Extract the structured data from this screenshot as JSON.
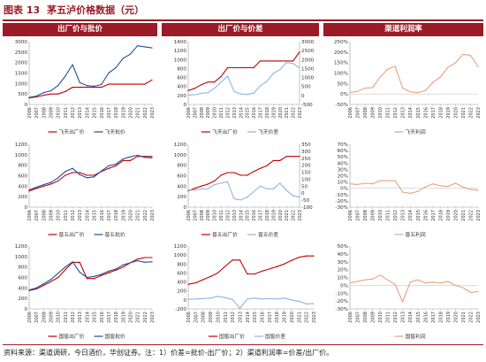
{
  "figure": {
    "label": "图表 13",
    "title": "茅五泸价格数据（元）"
  },
  "columns": [
    "出厂价与批价",
    "出厂价与价差",
    "渠道利润率"
  ],
  "source_note": "资料来源：渠道调研，今日酒价，华创证券。注：1）价差=批价-出厂价；2）渠道利润率=价差/出厂价。",
  "colors": {
    "red": "#c00000",
    "blue": "#1f4e9a",
    "lightblue": "#8fb4e3",
    "orange": "#e8a27c",
    "brand": "#9b1b26"
  },
  "chart_data": [
    {
      "id": "mt-price",
      "type": "line",
      "x": [
        "2006",
        "2007",
        "2008",
        "2009",
        "2010",
        "2011",
        "2012",
        "2013",
        "2014",
        "2015",
        "2016",
        "2017",
        "2018",
        "2019",
        "2020",
        "2021",
        "2022",
        "2023"
      ],
      "ylim": [
        0,
        3000
      ],
      "yticks": [
        0,
        500,
        1000,
        1500,
        2000,
        2500,
        3000
      ],
      "series": [
        {
          "name": "飞天出厂价",
          "color": "red",
          "dash": false,
          "values": [
            308,
            358,
            439,
            499,
            499,
            619,
            819,
            819,
            819,
            819,
            819,
            969,
            969,
            969,
            969,
            969,
            969,
            1169
          ]
        },
        {
          "name": "飞天批价",
          "color": "blue",
          "dash": false,
          "values": [
            330,
            400,
            560,
            650,
            900,
            1350,
            1900,
            1050,
            900,
            870,
            950,
            1500,
            1750,
            2200,
            2400,
            2800,
            2750,
            2700
          ]
        }
      ]
    },
    {
      "id": "mt-spread",
      "type": "line",
      "x": [
        "2006",
        "2007",
        "2008",
        "2009",
        "2010",
        "2011",
        "2012",
        "2013",
        "2014",
        "2015",
        "2016",
        "2017",
        "2018",
        "2019",
        "2020",
        "2021",
        "2022",
        "2023"
      ],
      "ylim": [
        0,
        1400
      ],
      "yticks": [
        0,
        200,
        400,
        600,
        800,
        1000,
        1200,
        1400
      ],
      "ylim2": [
        -500,
        3000
      ],
      "yticks2": [
        -500,
        0,
        500,
        1000,
        1500,
        2000,
        2500,
        3000
      ],
      "series": [
        {
          "name": "飞天出厂价",
          "color": "red",
          "dash": false,
          "axis": "left",
          "values": [
            308,
            358,
            439,
            499,
            499,
            619,
            819,
            819,
            819,
            819,
            819,
            969,
            969,
            969,
            969,
            969,
            969,
            1169
          ]
        },
        {
          "name": "飞天价差",
          "color": "lightblue",
          "dash": false,
          "axis": "right",
          "values": [
            22,
            42,
            121,
            151,
            401,
            731,
            1081,
            231,
            81,
            51,
            131,
            531,
            781,
            1231,
            1431,
            1831,
            1781,
            1531
          ]
        }
      ]
    },
    {
      "id": "mt-margin",
      "type": "line",
      "x": [
        "2006",
        "2007",
        "2008",
        "2009",
        "2010",
        "2011",
        "2012",
        "2013",
        "2014",
        "2015",
        "2016",
        "2017",
        "2018",
        "2019",
        "2020",
        "2021",
        "2022",
        "2023"
      ],
      "ylim": [
        -50,
        250
      ],
      "yticks": [
        -50,
        0,
        50,
        100,
        150,
        200,
        250
      ],
      "yformat": "%",
      "series": [
        {
          "name": "飞天利润",
          "color": "orange",
          "dash": false,
          "values": [
            7,
            12,
            28,
            30,
            80,
            118,
            132,
            28,
            10,
            6,
            16,
            55,
            81,
            127,
            148,
            189,
            184,
            131
          ]
        }
      ]
    },
    {
      "id": "wly-price",
      "type": "line",
      "x": [
        "2006",
        "2007",
        "2008",
        "2009",
        "2010",
        "2011",
        "2012",
        "2013",
        "2014",
        "2015",
        "2016",
        "2017",
        "2018",
        "2019",
        "2020",
        "2021",
        "2022",
        "2023"
      ],
      "ylim": [
        0,
        1200
      ],
      "yticks": [
        0,
        200,
        400,
        600,
        800,
        1000,
        1200
      ],
      "series": [
        {
          "name": "普五出厂价",
          "color": "red",
          "dash": false,
          "values": [
            308,
            358,
            400,
            439,
            499,
            609,
            659,
            659,
            609,
            609,
            679,
            739,
            789,
            889,
            889,
            969,
            969,
            969
          ]
        },
        {
          "name": "普五批价",
          "color": "blue",
          "dash": false,
          "values": [
            330,
            380,
            430,
            470,
            560,
            680,
            740,
            620,
            560,
            580,
            690,
            790,
            820,
            920,
            960,
            990,
            950,
            940
          ]
        }
      ]
    },
    {
      "id": "wly-spread",
      "type": "line",
      "x": [
        "2006",
        "2007",
        "2008",
        "2009",
        "2010",
        "2011",
        "2012",
        "2013",
        "2014",
        "2015",
        "2016",
        "2017",
        "2018",
        "2019",
        "2020",
        "2021",
        "2022",
        "2023"
      ],
      "ylim": [
        0,
        1200
      ],
      "yticks": [
        0,
        200,
        400,
        600,
        800,
        1000,
        1200
      ],
      "ylim2": [
        -100,
        350
      ],
      "yticks2": [
        -100,
        -50,
        0,
        50,
        100,
        150,
        200,
        250,
        300,
        350
      ],
      "series": [
        {
          "name": "普五出厂价",
          "color": "red",
          "dash": false,
          "axis": "left",
          "values": [
            308,
            358,
            400,
            439,
            499,
            609,
            659,
            659,
            609,
            609,
            679,
            739,
            789,
            889,
            889,
            969,
            969,
            969
          ]
        },
        {
          "name": "普五价差",
          "color": "lightblue",
          "dash": false,
          "axis": "right",
          "values": [
            22,
            22,
            30,
            31,
            61,
            71,
            81,
            -39,
            -49,
            -29,
            11,
            51,
            31,
            31,
            71,
            21,
            -19,
            -29
          ]
        }
      ]
    },
    {
      "id": "wly-margin",
      "type": "line",
      "x": [
        "2006",
        "2007",
        "2008",
        "2009",
        "2010",
        "2011",
        "2012",
        "2013",
        "2014",
        "2015",
        "2016",
        "2017",
        "2018",
        "2019",
        "2020",
        "2021",
        "2022",
        "2023"
      ],
      "ylim": [
        -30,
        70
      ],
      "yticks": [
        -30,
        -20,
        -10,
        0,
        10,
        20,
        30,
        40,
        50,
        60,
        70
      ],
      "yformat": "%",
      "series": [
        {
          "name": "普五利润",
          "color": "orange",
          "dash": false,
          "values": [
            7,
            6,
            8,
            7,
            12,
            12,
            12,
            -6,
            -8,
            -5,
            2,
            7,
            4,
            3,
            8,
            2,
            -2,
            -3
          ]
        }
      ]
    },
    {
      "id": "lz-price",
      "type": "line",
      "x": [
        "2006",
        "2007",
        "2008",
        "2009",
        "2010",
        "2011",
        "2012",
        "2013",
        "2014",
        "2015",
        "2016",
        "2017",
        "2018",
        "2019",
        "2020",
        "2021",
        "2022",
        "2023"
      ],
      "ylim": [
        0,
        1200
      ],
      "yticks": [
        0,
        200,
        400,
        600,
        800,
        1000,
        1200
      ],
      "series": [
        {
          "name": "国窖出厂价",
          "color": "red",
          "dash": false,
          "values": [
            348,
            380,
            450,
            520,
            600,
            749,
            889,
            889,
            579,
            579,
            640,
            690,
            740,
            800,
            880,
            950,
            980,
            980
          ]
        },
        {
          "name": "国窖批价",
          "color": "blue",
          "dash": false,
          "values": [
            360,
            400,
            480,
            560,
            680,
            800,
            900,
            700,
            600,
            620,
            660,
            720,
            760,
            840,
            880,
            920,
            890,
            900
          ]
        }
      ]
    },
    {
      "id": "lz-spread",
      "type": "line",
      "x": [
        "2006",
        "2007",
        "2008",
        "2009",
        "2010",
        "2011",
        "2012",
        "2013",
        "2014",
        "2015",
        "2016",
        "2017",
        "2018",
        "2019",
        "2020",
        "2021",
        "2022",
        "2023"
      ],
      "ylim": [
        -200,
        1200
      ],
      "yticks": [
        -200,
        0,
        200,
        400,
        600,
        800,
        1000,
        1200
      ],
      "series": [
        {
          "name": "国窖出厂价",
          "color": "red",
          "dash": false,
          "values": [
            348,
            380,
            450,
            520,
            600,
            749,
            889,
            889,
            579,
            579,
            640,
            690,
            740,
            800,
            880,
            950,
            980,
            980
          ]
        },
        {
          "name": "国窖价差",
          "color": "lightblue",
          "dash": false,
          "values": [
            12,
            20,
            30,
            40,
            80,
            51,
            11,
            -189,
            21,
            41,
            20,
            30,
            20,
            40,
            0,
            -30,
            -90,
            -80
          ]
        }
      ]
    },
    {
      "id": "lz-margin",
      "type": "line",
      "x": [
        "2006",
        "2007",
        "2008",
        "2009",
        "2010",
        "2011",
        "2012",
        "2013",
        "2014",
        "2015",
        "2016",
        "2017",
        "2018",
        "2019",
        "2020",
        "2021",
        "2022",
        "2023"
      ],
      "ylim": [
        -30,
        50
      ],
      "yticks": [
        -30,
        -20,
        -10,
        0,
        10,
        20,
        30,
        40,
        50
      ],
      "yformat": "%",
      "series": [
        {
          "name": "国窖利润",
          "color": "orange",
          "dash": false,
          "values": [
            3,
            5,
            7,
            8,
            13,
            7,
            1,
            -21,
            4,
            7,
            3,
            4,
            3,
            5,
            0,
            -3,
            -9,
            -8
          ]
        }
      ]
    }
  ]
}
